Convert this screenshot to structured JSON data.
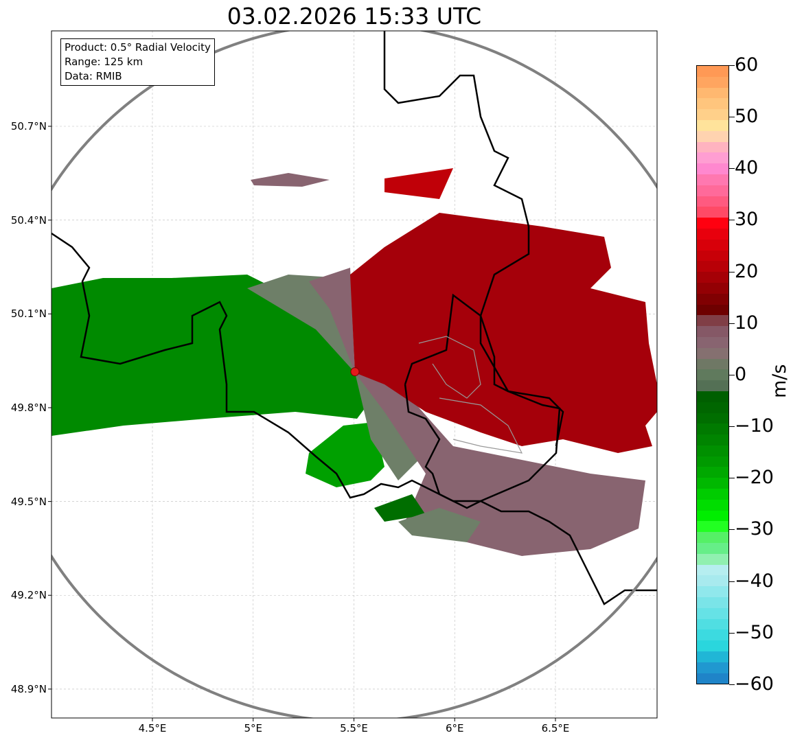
{
  "title": "03.02.2026 15:33 UTC",
  "info_box": {
    "line1": "Product: 0.5° Radial Velocity",
    "line2": "Range: 125 km",
    "line3": "Data: RMIB"
  },
  "lat_labels": [
    "50.7°N",
    "50.4°N",
    "50.1°N",
    "49.8°N",
    "49.5°N",
    "49.2°N",
    "48.9°N"
  ],
  "lat_values": [
    50.7,
    50.4,
    50.1,
    49.8,
    49.5,
    49.2,
    48.9
  ],
  "lon_labels": [
    "4.5°E",
    "5°E",
    "5.5°E",
    "6°E",
    "6.5°E"
  ],
  "lon_values": [
    4.5,
    5.0,
    5.5,
    6.0,
    6.5
  ],
  "radar_site": {
    "lon": 5.505,
    "lat": 49.915,
    "color": "#e31a1c"
  },
  "colorbar": {
    "label": "m/s",
    "min": -60,
    "max": 60,
    "tick_labels": [
      "60",
      "50",
      "40",
      "30",
      "20",
      "10",
      "0",
      "−10",
      "−20",
      "−30",
      "−40",
      "−50",
      "−60"
    ],
    "colors_top_to_bottom": [
      "#ff9955",
      "#ffa560",
      "#ffb870",
      "#ffc57d",
      "#ffd08a",
      "#ffe39b",
      "#ffd3b0",
      "#ffb3c0",
      "#ff9ed2",
      "#ff88cf",
      "#ff78b0",
      "#ff6a9a",
      "#ff5a80",
      "#ff4a66",
      "#ff0010",
      "#e8000d",
      "#d8000a",
      "#c80008",
      "#b80007",
      "#a50006",
      "#930004",
      "#800002",
      "#6e0000",
      "#803e46",
      "#855866",
      "#886470",
      "#857070",
      "#6f7865",
      "#607a5d",
      "#547055",
      "#005f00",
      "#006600",
      "#006e00",
      "#007a00",
      "#008400",
      "#009000",
      "#009a00",
      "#00a800",
      "#00b800",
      "#00cc00",
      "#00dd00",
      "#00ee00",
      "#22ff22",
      "#55f066",
      "#66ee88",
      "#90f0b0",
      "#b6eef0",
      "#a8eaee",
      "#90e8ec",
      "#7ae4e8",
      "#66e2e6",
      "#50dee2",
      "#3cdae0",
      "#2ad6dd",
      "#20b6d6",
      "#2098d0",
      "#1f84c8"
    ]
  }
}
